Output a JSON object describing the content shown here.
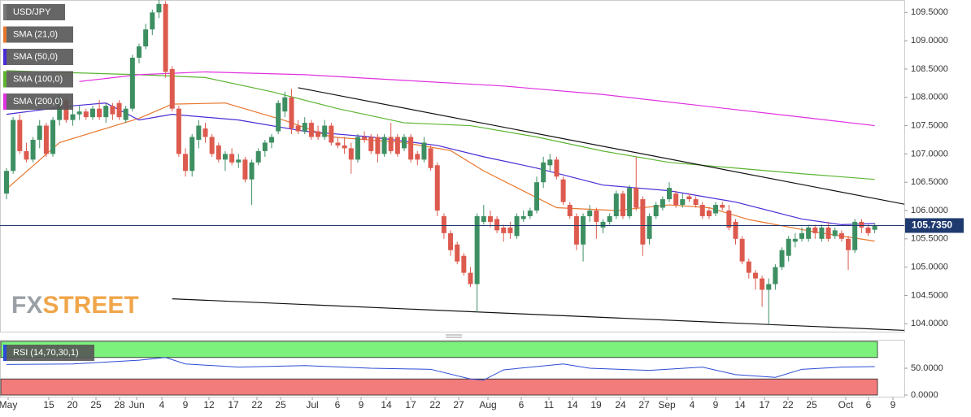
{
  "chart_data": {
    "type": "candlestick",
    "title": "USD/JPY",
    "watermark": [
      "FX",
      "STREET"
    ],
    "ylim": [
      103.86,
      109.72
    ],
    "yticks": [
      {
        "value": 109.5,
        "label": "109.5000"
      },
      {
        "value": 109,
        "label": "109.0000"
      },
      {
        "value": 108.5,
        "label": "108.5000"
      },
      {
        "value": 108,
        "label": "108.0000"
      },
      {
        "value": 107.5,
        "label": "107.5000"
      },
      {
        "value": 107,
        "label": "107.0000"
      },
      {
        "value": 106.5,
        "label": "106.5000"
      },
      {
        "value": 106,
        "label": "106.0000"
      },
      {
        "value": 105.5,
        "label": "105.5000"
      },
      {
        "value": 105,
        "label": "105.0000"
      },
      {
        "value": 104.5,
        "label": "104.5000"
      },
      {
        "value": 104,
        "label": "104.0000"
      }
    ],
    "last": {
      "value": 105.735,
      "label": "105.7350"
    },
    "x_labels": [
      "May",
      "15",
      "20",
      "25",
      "28",
      "Jun",
      "4",
      "9",
      "12",
      "17",
      "22",
      "25",
      "Jul",
      "6",
      "9",
      "14",
      "17",
      "22",
      "27",
      "Aug",
      "6",
      "11",
      "14",
      "19",
      "24",
      "27",
      "Sep",
      "4",
      "9",
      "14",
      "17",
      "22",
      "25",
      "Oct",
      "6",
      "9"
    ],
    "candle_colors": {
      "up": "#3d8f62",
      "down": "#dd5a4e"
    },
    "candles": [
      [
        106.3,
        106.75,
        106.2,
        106.7
      ],
      [
        106.7,
        107.65,
        106.65,
        107.6
      ],
      [
        107.6,
        107.7,
        107.0,
        107.05
      ],
      [
        107.05,
        107.2,
        106.85,
        106.9
      ],
      [
        106.9,
        107.3,
        106.85,
        107.25
      ],
      [
        107.25,
        107.6,
        107.1,
        107.5
      ],
      [
        107.5,
        107.55,
        106.95,
        107.0
      ],
      [
        107.0,
        107.65,
        106.95,
        107.6
      ],
      [
        107.6,
        108.05,
        107.5,
        108.0
      ],
      [
        107.95,
        108.0,
        107.55,
        107.6
      ],
      [
        107.6,
        107.8,
        107.5,
        107.7
      ],
      [
        107.7,
        107.85,
        107.6,
        107.75
      ],
      [
        107.75,
        107.8,
        107.6,
        107.65
      ],
      [
        107.65,
        107.85,
        107.6,
        107.8
      ],
      [
        107.8,
        107.95,
        107.6,
        107.65
      ],
      [
        107.65,
        107.9,
        107.55,
        107.85
      ],
      [
        107.85,
        107.9,
        107.6,
        107.7
      ],
      [
        107.9,
        107.95,
        107.6,
        107.65
      ],
      [
        107.6,
        107.85,
        107.55,
        107.8
      ],
      [
        107.8,
        108.75,
        107.75,
        108.7
      ],
      [
        108.7,
        108.95,
        108.6,
        108.9
      ],
      [
        108.9,
        109.3,
        108.85,
        109.2
      ],
      [
        109.2,
        109.55,
        109.1,
        109.5
      ],
      [
        109.5,
        109.75,
        109.4,
        109.65
      ],
      [
        109.65,
        109.7,
        108.35,
        108.45
      ],
      [
        108.5,
        108.55,
        107.75,
        107.8
      ],
      [
        107.8,
        107.85,
        106.95,
        107.0
      ],
      [
        107.0,
        107.1,
        106.6,
        106.7
      ],
      [
        106.7,
        107.35,
        106.6,
        107.3
      ],
      [
        107.25,
        107.6,
        107.1,
        107.5
      ],
      [
        107.45,
        107.55,
        107.2,
        107.3
      ],
      [
        107.3,
        107.35,
        106.95,
        107.0
      ],
      [
        107.15,
        107.2,
        106.85,
        106.9
      ],
      [
        106.9,
        107.05,
        106.7,
        107.0
      ],
      [
        107.0,
        107.1,
        106.8,
        106.85
      ],
      [
        106.85,
        107.0,
        106.75,
        106.9
      ],
      [
        106.9,
        106.95,
        106.5,
        106.55
      ],
      [
        106.55,
        106.9,
        106.1,
        106.85
      ],
      [
        106.85,
        107.1,
        106.8,
        107.05
      ],
      [
        107.05,
        107.25,
        106.95,
        107.2
      ],
      [
        107.2,
        107.35,
        107.1,
        107.3
      ],
      [
        107.4,
        107.95,
        107.35,
        107.9
      ],
      [
        107.75,
        108.1,
        107.65,
        108.0
      ],
      [
        108.0,
        108.15,
        107.35,
        107.45
      ],
      [
        107.5,
        107.6,
        107.35,
        107.4
      ],
      [
        107.4,
        107.65,
        107.35,
        107.55
      ],
      [
        107.55,
        107.6,
        107.25,
        107.3
      ],
      [
        107.4,
        107.5,
        107.25,
        107.3
      ],
      [
        107.3,
        107.6,
        107.25,
        107.5
      ],
      [
        107.5,
        107.55,
        107.15,
        107.2
      ],
      [
        107.2,
        107.3,
        107.1,
        107.15
      ],
      [
        107.15,
        107.3,
        107.0,
        107.1
      ],
      [
        107.1,
        107.2,
        106.65,
        106.9
      ],
      [
        106.9,
        107.35,
        106.85,
        107.3
      ],
      [
        107.3,
        107.4,
        107.2,
        107.25
      ],
      [
        107.3,
        107.35,
        107.0,
        107.05
      ],
      [
        107.3,
        107.35,
        106.85,
        107.0
      ],
      [
        107.0,
        107.35,
        106.95,
        107.3
      ],
      [
        107.3,
        107.55,
        107.0,
        107.05
      ],
      [
        107.3,
        107.35,
        106.95,
        107.0
      ],
      [
        107.1,
        107.35,
        107.05,
        107.3
      ],
      [
        107.3,
        107.35,
        106.85,
        106.9
      ],
      [
        107.0,
        107.05,
        106.8,
        106.9
      ],
      [
        106.9,
        107.3,
        106.85,
        107.2
      ],
      [
        107.1,
        107.15,
        106.7,
        106.75
      ],
      [
        106.8,
        106.85,
        105.9,
        106.0
      ],
      [
        105.9,
        105.95,
        105.5,
        105.6
      ],
      [
        105.6,
        105.65,
        105.2,
        105.3
      ],
      [
        105.4,
        105.45,
        105.05,
        105.1
      ],
      [
        105.2,
        105.25,
        104.85,
        104.9
      ],
      [
        104.9,
        105.0,
        104.65,
        104.7
      ],
      [
        104.7,
        105.95,
        104.2,
        105.9
      ],
      [
        105.8,
        106.1,
        105.75,
        105.9
      ],
      [
        105.9,
        106.0,
        105.7,
        105.8
      ],
      [
        105.85,
        105.9,
        105.6,
        105.65
      ],
      [
        105.7,
        105.75,
        105.45,
        105.6
      ],
      [
        105.7,
        105.8,
        105.5,
        105.6
      ],
      [
        105.55,
        105.95,
        105.5,
        105.9
      ],
      [
        105.85,
        106.0,
        105.8,
        105.9
      ],
      [
        105.9,
        106.05,
        105.85,
        106.0
      ],
      [
        106.0,
        106.6,
        105.95,
        106.5
      ],
      [
        106.5,
        106.95,
        106.4,
        106.85
      ],
      [
        106.8,
        107.0,
        106.7,
        106.9
      ],
      [
        106.9,
        106.95,
        106.55,
        106.6
      ],
      [
        106.55,
        106.6,
        106.1,
        106.15
      ],
      [
        106.1,
        106.15,
        105.85,
        105.9
      ],
      [
        105.9,
        105.95,
        105.3,
        105.4
      ],
      [
        105.4,
        105.95,
        105.1,
        105.9
      ],
      [
        105.9,
        106.1,
        105.8,
        106.0
      ],
      [
        106.0,
        106.05,
        105.5,
        105.8
      ],
      [
        105.7,
        105.85,
        105.6,
        105.8
      ],
      [
        105.8,
        105.95,
        105.75,
        105.9
      ],
      [
        105.9,
        106.35,
        105.85,
        106.3
      ],
      [
        106.3,
        106.35,
        105.85,
        105.9
      ],
      [
        105.9,
        106.45,
        105.85,
        106.4
      ],
      [
        106.4,
        106.95,
        106.0,
        106.05
      ],
      [
        106.2,
        106.25,
        105.2,
        105.4
      ],
      [
        105.5,
        105.95,
        105.4,
        105.9
      ],
      [
        105.9,
        106.15,
        105.85,
        106.1
      ],
      [
        106.05,
        106.25,
        106.0,
        106.2
      ],
      [
        106.2,
        106.5,
        106.15,
        106.4
      ],
      [
        106.3,
        106.35,
        106.05,
        106.1
      ],
      [
        106.1,
        106.3,
        106.05,
        106.2
      ],
      [
        106.25,
        106.3,
        106.15,
        106.2
      ],
      [
        106.2,
        106.25,
        106.05,
        106.1
      ],
      [
        106.1,
        106.15,
        105.85,
        105.9
      ],
      [
        106.0,
        106.05,
        105.85,
        105.9
      ],
      [
        105.95,
        106.15,
        105.9,
        106.1
      ],
      [
        106.1,
        106.15,
        106.0,
        106.05
      ],
      [
        106.0,
        106.1,
        105.65,
        105.7
      ],
      [
        105.8,
        105.85,
        105.4,
        105.5
      ],
      [
        105.5,
        105.55,
        105.05,
        105.1
      ],
      [
        105.1,
        105.15,
        104.8,
        104.9
      ],
      [
        104.9,
        104.95,
        104.6,
        104.8
      ],
      [
        104.8,
        104.85,
        104.3,
        104.6
      ],
      [
        104.6,
        104.8,
        104.0,
        104.7
      ],
      [
        104.7,
        105.05,
        104.6,
        105.0
      ],
      [
        105.0,
        105.35,
        104.95,
        105.3
      ],
      [
        105.2,
        105.55,
        105.1,
        105.5
      ],
      [
        105.45,
        105.6,
        105.35,
        105.5
      ],
      [
        105.5,
        105.7,
        105.45,
        105.6
      ],
      [
        105.5,
        105.75,
        105.45,
        105.7
      ],
      [
        105.7,
        105.75,
        105.5,
        105.6
      ],
      [
        105.5,
        105.75,
        105.45,
        105.7
      ],
      [
        105.7,
        105.8,
        105.45,
        105.5
      ],
      [
        105.55,
        105.7,
        105.5,
        105.65
      ],
      [
        105.6,
        105.65,
        105.45,
        105.5
      ],
      [
        105.5,
        105.55,
        104.95,
        105.3
      ],
      [
        105.3,
        105.85,
        105.25,
        105.8
      ],
      [
        105.8,
        105.85,
        105.6,
        105.7
      ],
      [
        105.7,
        105.75,
        105.55,
        105.6
      ],
      [
        105.66,
        105.78,
        105.6,
        105.735
      ]
    ],
    "series": [
      {
        "name": "SMA (21,0)",
        "color": "#e8772e",
        "x": [
          0,
          8,
          20,
          25,
          33,
          42,
          49,
          60,
          67,
          72,
          83,
          92,
          100,
          106,
          112,
          122,
          131
        ],
        "values": [
          106.38,
          107.2,
          107.63,
          107.88,
          107.9,
          107.59,
          107.3,
          107.2,
          107.06,
          106.7,
          106.05,
          106.0,
          106.1,
          106.05,
          105.84,
          105.62,
          105.46
        ]
      },
      {
        "name": "SMA (50,0)",
        "color": "#4b2bd6",
        "x": [
          0,
          10,
          15,
          20,
          25,
          35,
          45,
          55,
          65,
          72,
          80,
          90,
          100,
          110,
          120,
          126,
          131
        ],
        "values": [
          107.7,
          107.85,
          107.9,
          107.6,
          107.7,
          107.6,
          107.4,
          107.3,
          107.15,
          106.95,
          106.75,
          106.45,
          106.35,
          106.15,
          105.85,
          105.75,
          105.77
        ]
      },
      {
        "name": "SMA (100,0)",
        "color": "#5bb531",
        "x": [
          0,
          20,
          30,
          40,
          50,
          60,
          70,
          80,
          90,
          100,
          110,
          120,
          131
        ],
        "values": [
          108.47,
          108.4,
          108.35,
          108.1,
          107.8,
          107.55,
          107.5,
          107.3,
          107.05,
          106.85,
          106.75,
          106.65,
          106.55
        ]
      },
      {
        "name": "SMA (200,0)",
        "color": "#e030e0",
        "x": [
          11,
          20,
          30,
          45,
          60,
          75,
          90,
          105,
          120,
          131
        ],
        "values": [
          108.28,
          108.4,
          108.45,
          108.4,
          108.3,
          108.2,
          108.05,
          107.85,
          107.65,
          107.5
        ]
      }
    ],
    "trendlines": [
      {
        "x": [
          44,
          136
        ],
        "values": [
          108.17,
          106.1
        ]
      },
      {
        "x": [
          25,
          136
        ],
        "values": [
          104.44,
          103.88
        ]
      }
    ],
    "rsi": {
      "title": "RSI (14,70,30,1)",
      "overbought": 70,
      "oversold": 30,
      "color": "#2b4bd6",
      "ylim": [
        0,
        100
      ],
      "yticks": [
        {
          "value": 50,
          "label": "50.0000"
        },
        {
          "value": 0,
          "label": "0.0000"
        }
      ],
      "x": [
        0,
        10,
        20,
        24,
        27,
        35,
        45,
        55,
        64,
        70,
        72,
        75,
        84,
        88,
        97,
        105,
        110,
        116,
        120,
        126,
        131
      ],
      "values": [
        57,
        58,
        65,
        70,
        58,
        52,
        55,
        50,
        48,
        30,
        28,
        47,
        58,
        50,
        46,
        52,
        38,
        33,
        48,
        52,
        53
      ]
    }
  }
}
